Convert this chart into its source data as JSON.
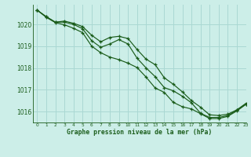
{
  "title": "Graphe pression niveau de la mer (hPa)",
  "background_color": "#cceee8",
  "grid_color": "#aad8d3",
  "line_color": "#1a5c1a",
  "xlim": [
    -0.5,
    23
  ],
  "ylim": [
    1015.5,
    1020.9
  ],
  "yticks": [
    1016,
    1017,
    1018,
    1019,
    1020
  ],
  "xticks": [
    0,
    1,
    2,
    3,
    4,
    5,
    6,
    7,
    8,
    9,
    10,
    11,
    12,
    13,
    14,
    15,
    16,
    17,
    18,
    19,
    20,
    21,
    22,
    23
  ],
  "series1": [
    1020.65,
    1020.35,
    1020.1,
    1020.15,
    1020.05,
    1019.9,
    1019.5,
    1019.2,
    1019.4,
    1019.45,
    1019.35,
    1018.85,
    1018.4,
    1018.15,
    1017.55,
    1017.25,
    1016.9,
    1016.5,
    1016.2,
    1015.85,
    1015.82,
    1015.88,
    1016.08,
    1016.38
  ],
  "series2": [
    1020.65,
    1020.35,
    1020.1,
    1020.1,
    1020.0,
    1019.8,
    1019.25,
    1018.95,
    1019.1,
    1019.3,
    1019.1,
    1018.45,
    1018.0,
    1017.6,
    1017.1,
    1016.95,
    1016.7,
    1016.4,
    1015.92,
    1015.73,
    1015.73,
    1015.82,
    1016.07,
    1016.34
  ],
  "series3": [
    1020.65,
    1020.32,
    1020.08,
    1019.98,
    1019.82,
    1019.62,
    1019.0,
    1018.7,
    1018.5,
    1018.38,
    1018.22,
    1018.02,
    1017.58,
    1017.08,
    1016.88,
    1016.42,
    1016.22,
    1016.12,
    1015.9,
    1015.68,
    1015.68,
    1015.78,
    1016.03,
    1016.33
  ]
}
